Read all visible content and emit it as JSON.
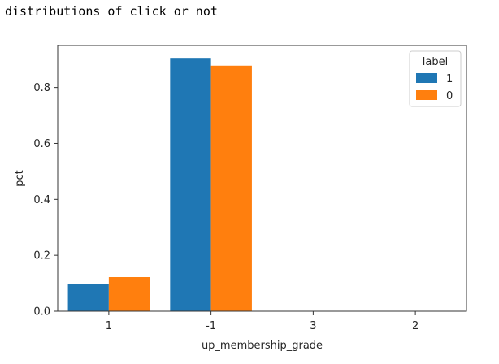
{
  "output": {
    "text": "distributions of click or not"
  },
  "chart_data": {
    "type": "bar",
    "title": "",
    "xlabel": "up_membership_grade",
    "ylabel": "pct",
    "categories": [
      "1",
      "-1",
      "3",
      "2"
    ],
    "series": [
      {
        "name": "1",
        "values": [
          0.097,
          0.903,
          0.0,
          0.0
        ],
        "color": "#1f77b4"
      },
      {
        "name": "0",
        "values": [
          0.122,
          0.878,
          0.0,
          0.0
        ],
        "color": "#ff7f0e"
      }
    ],
    "ylim": [
      0,
      0.95
    ],
    "yticks": [
      "0.0",
      "0.2",
      "0.4",
      "0.6",
      "0.8"
    ],
    "legend": {
      "title": "label",
      "placement": "top-right"
    },
    "grid": false
  }
}
